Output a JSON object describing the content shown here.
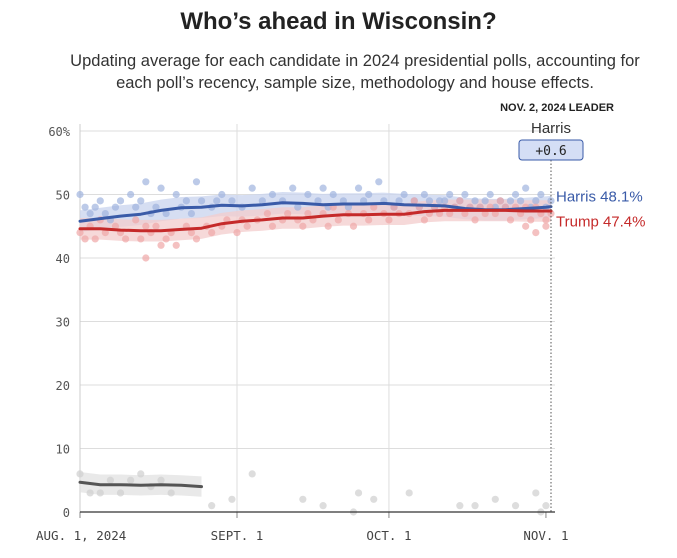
{
  "chart_data": {
    "type": "line",
    "title": "Who’s ahead in Wisconsin?",
    "subtitle": "Updating average for each candidate in 2024 presidential polls, accounting for each poll’s recency, sample size, methodology and house effects.",
    "ylim": [
      0,
      60
    ],
    "yticks": [
      "60%",
      "50",
      "40",
      "30",
      "20",
      "10",
      "0"
    ],
    "ytick_values": [
      60,
      50,
      40,
      30,
      20,
      10,
      0
    ],
    "xticks": [
      {
        "label": "AUG. 1, 2024",
        "day": 0
      },
      {
        "label": "SEPT. 1",
        "day": 31
      },
      {
        "label": "OCT. 1",
        "day": 61
      },
      {
        "label": "NOV. 1",
        "day": 92
      }
    ],
    "x_days": [
      0,
      4,
      8,
      12,
      16,
      20,
      24,
      28,
      32,
      36,
      40,
      44,
      48,
      52,
      56,
      60,
      64,
      68,
      72,
      76,
      80,
      84,
      88,
      92,
      93
    ],
    "series": [
      {
        "name": "Harris",
        "end_label": "Harris 48.1%",
        "color": "#3a5ba8",
        "band_color": "#c8d3ee",
        "values": [
          45.8,
          46.2,
          46.6,
          46.9,
          47.5,
          47.9,
          48.0,
          48.3,
          48.2,
          48.4,
          48.7,
          48.6,
          48.4,
          48.5,
          48.5,
          48.6,
          48.4,
          48.3,
          48.2,
          47.8,
          47.6,
          47.6,
          47.8,
          48.0,
          48.1
        ]
      },
      {
        "name": "Trump",
        "end_label": "Trump 47.4%",
        "color": "#c52a2a",
        "band_color": "#f3cccc",
        "values": [
          44.6,
          44.6,
          44.4,
          44.3,
          44.3,
          44.5,
          44.7,
          45.4,
          45.8,
          46.0,
          46.3,
          46.3,
          46.6,
          46.8,
          46.8,
          46.9,
          46.9,
          47.3,
          47.5,
          47.5,
          47.5,
          47.5,
          47.4,
          47.4,
          47.4
        ]
      },
      {
        "name": "",
        "color": "#555555",
        "band_color": "#e2e2e2",
        "values": [
          4.7,
          4.3,
          4.3,
          4.2,
          4.3,
          4.2,
          4.0
        ]
      }
    ],
    "scatter_series": [
      {
        "color": "#9fb3de",
        "points": [
          [
            0,
            50
          ],
          [
            1,
            48
          ],
          [
            2,
            47
          ],
          [
            3,
            48
          ],
          [
            4,
            49
          ],
          [
            5,
            47
          ],
          [
            6,
            46
          ],
          [
            7,
            48
          ],
          [
            8,
            49
          ],
          [
            10,
            50
          ],
          [
            11,
            48
          ],
          [
            12,
            49
          ],
          [
            13,
            52
          ],
          [
            14,
            47
          ],
          [
            15,
            48
          ],
          [
            16,
            51
          ],
          [
            17,
            47
          ],
          [
            19,
            50
          ],
          [
            20,
            48
          ],
          [
            21,
            49
          ],
          [
            22,
            47
          ],
          [
            23,
            52
          ],
          [
            24,
            49
          ],
          [
            26,
            48
          ],
          [
            27,
            49
          ],
          [
            28,
            50
          ],
          [
            30,
            49
          ],
          [
            32,
            48
          ],
          [
            34,
            51
          ],
          [
            36,
            49
          ],
          [
            38,
            50
          ],
          [
            40,
            49
          ],
          [
            42,
            51
          ],
          [
            43,
            48
          ],
          [
            45,
            50
          ],
          [
            47,
            49
          ],
          [
            48,
            51
          ],
          [
            49,
            48
          ],
          [
            50,
            50
          ],
          [
            52,
            49
          ],
          [
            53,
            48
          ],
          [
            55,
            51
          ],
          [
            56,
            49
          ],
          [
            57,
            50
          ],
          [
            59,
            52
          ],
          [
            60,
            49
          ],
          [
            62,
            48
          ],
          [
            63,
            49
          ],
          [
            64,
            50
          ],
          [
            66,
            49
          ],
          [
            67,
            48
          ],
          [
            68,
            50
          ],
          [
            69,
            49
          ],
          [
            70,
            48
          ],
          [
            71,
            49
          ],
          [
            72,
            49
          ],
          [
            73,
            50
          ],
          [
            74,
            48
          ],
          [
            75,
            49
          ],
          [
            76,
            50
          ],
          [
            77,
            48
          ],
          [
            78,
            49
          ],
          [
            79,
            48
          ],
          [
            80,
            49
          ],
          [
            81,
            50
          ],
          [
            82,
            48
          ],
          [
            83,
            49
          ],
          [
            84,
            48
          ],
          [
            85,
            49
          ],
          [
            86,
            50
          ],
          [
            87,
            49
          ],
          [
            88,
            51
          ],
          [
            89,
            48
          ],
          [
            90,
            49
          ],
          [
            91,
            50
          ],
          [
            92,
            48
          ],
          [
            93,
            49
          ]
        ]
      },
      {
        "color": "#efa7a7",
        "points": [
          [
            0,
            44
          ],
          [
            1,
            43
          ],
          [
            2,
            45
          ],
          [
            3,
            43
          ],
          [
            4,
            46
          ],
          [
            5,
            44
          ],
          [
            7,
            45
          ],
          [
            8,
            44
          ],
          [
            9,
            43
          ],
          [
            11,
            46
          ],
          [
            12,
            43
          ],
          [
            13,
            45
          ],
          [
            14,
            44
          ],
          [
            15,
            45
          ],
          [
            16,
            42
          ],
          [
            17,
            43
          ],
          [
            18,
            44
          ],
          [
            19,
            42
          ],
          [
            21,
            45
          ],
          [
            22,
            44
          ],
          [
            23,
            43
          ],
          [
            25,
            45
          ],
          [
            26,
            44
          ],
          [
            28,
            45
          ],
          [
            29,
            46
          ],
          [
            31,
            44
          ],
          [
            32,
            46
          ],
          [
            33,
            45
          ],
          [
            35,
            46
          ],
          [
            37,
            47
          ],
          [
            38,
            45
          ],
          [
            40,
            46
          ],
          [
            41,
            47
          ],
          [
            43,
            46
          ],
          [
            44,
            45
          ],
          [
            45,
            47
          ],
          [
            46,
            46
          ],
          [
            48,
            47
          ],
          [
            49,
            45
          ],
          [
            50,
            48
          ],
          [
            51,
            46
          ],
          [
            53,
            47
          ],
          [
            54,
            45
          ],
          [
            56,
            47
          ],
          [
            57,
            46
          ],
          [
            58,
            48
          ],
          [
            60,
            47
          ],
          [
            61,
            46
          ],
          [
            62,
            48
          ],
          [
            63,
            47
          ],
          [
            65,
            47
          ],
          [
            66,
            49
          ],
          [
            67,
            48
          ],
          [
            68,
            46
          ],
          [
            69,
            47
          ],
          [
            70,
            48
          ],
          [
            71,
            47
          ],
          [
            72,
            48
          ],
          [
            73,
            47
          ],
          [
            74,
            48
          ],
          [
            75,
            49
          ],
          [
            76,
            47
          ],
          [
            77,
            48
          ],
          [
            78,
            46
          ],
          [
            79,
            48
          ],
          [
            80,
            47
          ],
          [
            81,
            48
          ],
          [
            82,
            47
          ],
          [
            83,
            49
          ],
          [
            84,
            48
          ],
          [
            85,
            46
          ],
          [
            86,
            48
          ],
          [
            87,
            47
          ],
          [
            88,
            48
          ],
          [
            89,
            46
          ],
          [
            90,
            48
          ],
          [
            91,
            47
          ],
          [
            92,
            46
          ],
          [
            93,
            47
          ],
          [
            13,
            40
          ],
          [
            88,
            45
          ],
          [
            90,
            44
          ],
          [
            92,
            45
          ]
        ]
      },
      {
        "color": "#cfcfcf",
        "points": [
          [
            0,
            6
          ],
          [
            2,
            3
          ],
          [
            4,
            3
          ],
          [
            6,
            5
          ],
          [
            8,
            3
          ],
          [
            10,
            5
          ],
          [
            12,
            6
          ],
          [
            14,
            4
          ],
          [
            16,
            5
          ],
          [
            18,
            3
          ],
          [
            26,
            1
          ],
          [
            30,
            2
          ],
          [
            34,
            6
          ],
          [
            44,
            2
          ],
          [
            48,
            1
          ],
          [
            54,
            0
          ],
          [
            55,
            3
          ],
          [
            58,
            2
          ],
          [
            65,
            3
          ],
          [
            75,
            1
          ],
          [
            78,
            1
          ],
          [
            82,
            2
          ],
          [
            86,
            1
          ],
          [
            90,
            3
          ],
          [
            91,
            0
          ],
          [
            92,
            1
          ]
        ]
      }
    ],
    "leader": {
      "header": "NOV. 2, 2024 LEADER",
      "name": "Harris",
      "margin": "+0.6"
    },
    "grid": true
  }
}
